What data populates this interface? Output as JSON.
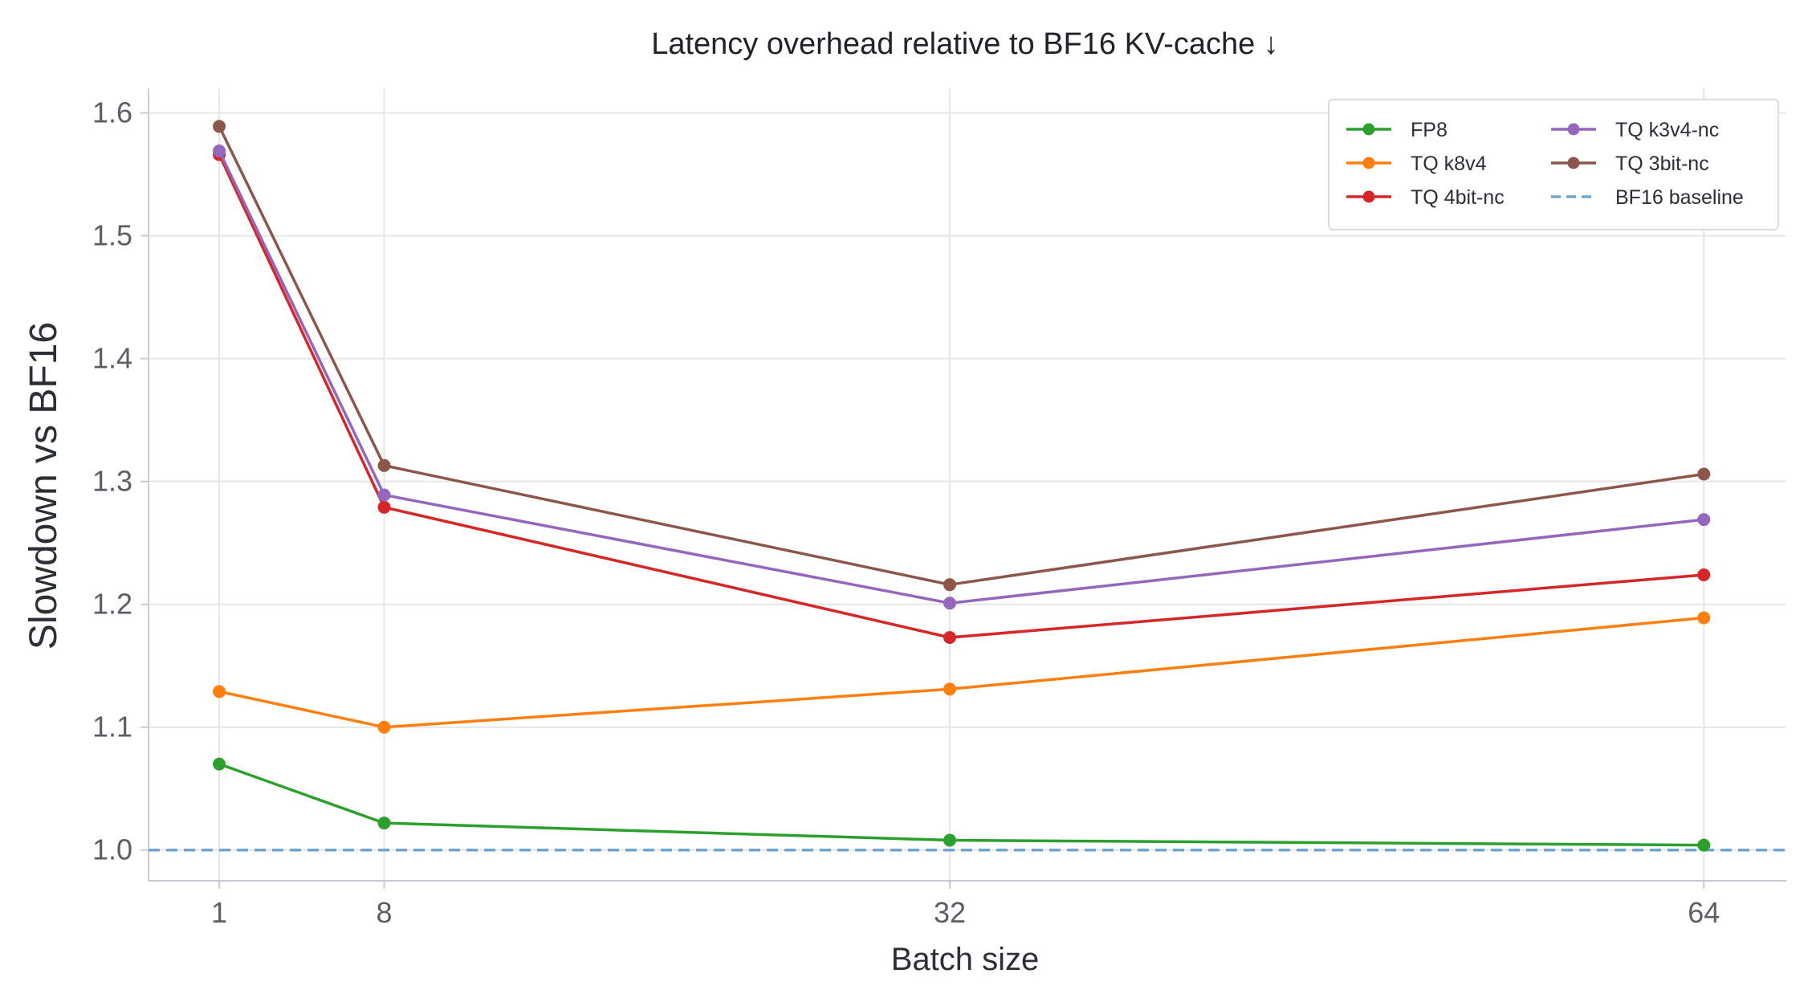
{
  "chart_data": {
    "type": "line",
    "title": "Latency overhead relative to BF16 KV-cache  ↓",
    "xlabel": "Batch size",
    "ylabel": "Slowdown vs BF16",
    "x": [
      1,
      8,
      32,
      64
    ],
    "x_ticks": [
      "1",
      "8",
      "32",
      "64"
    ],
    "xlim": [
      -2,
      67.5
    ],
    "ylim": [
      0.975,
      1.62
    ],
    "y_ticks": [
      "1.0",
      "1.1",
      "1.2",
      "1.3",
      "1.4",
      "1.5",
      "1.6"
    ],
    "grid": true,
    "legend_position": "top-right",
    "series": [
      {
        "name": "FP8",
        "color": "#2ca02c",
        "values": [
          1.07,
          1.022,
          1.008,
          1.004
        ]
      },
      {
        "name": "TQ k8v4",
        "color": "#ff7f0e",
        "values": [
          1.129,
          1.1,
          1.131,
          1.189
        ]
      },
      {
        "name": "TQ 4bit-nc",
        "color": "#d62728",
        "values": [
          1.566,
          1.279,
          1.173,
          1.224
        ]
      },
      {
        "name": "TQ k3v4-nc",
        "color": "#9467bd",
        "values": [
          1.569,
          1.289,
          1.201,
          1.269
        ]
      },
      {
        "name": "TQ 3bit-nc",
        "color": "#8c564b",
        "values": [
          1.589,
          1.313,
          1.216,
          1.306
        ]
      }
    ],
    "baseline": {
      "name": "BF16 baseline",
      "value": 1.0,
      "color": "#6fa6cf",
      "style": "dashed"
    }
  }
}
